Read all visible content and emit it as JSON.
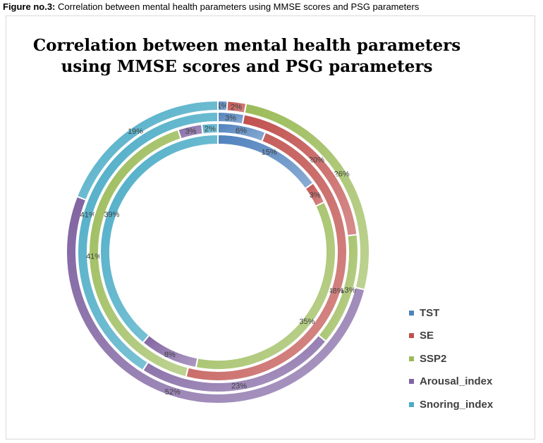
{
  "caption": {
    "prefix": "Figure no.3:",
    "text": " Correlation between mental health parameters using MMSE scores and PSG parameters"
  },
  "chart_data": {
    "type": "doughnut",
    "title": "Correlation between mental health parameters using MMSE scores and PSG parameters",
    "title_lines": [
      "Correlation between mental health parameters",
      "using MMSE scores and PSG parameters"
    ],
    "legend_position": "right",
    "categories": [
      "TST",
      "SE",
      "SSP2",
      "Arousal_index",
      "Snoring_index"
    ],
    "colors": [
      "#4f81bd",
      "#c0504d",
      "#9bbb59",
      "#8064a2",
      "#4bacc6"
    ],
    "rings_outer_to_inner": [
      {
        "values": [
          1,
          2,
          26,
          52,
          19
        ]
      },
      {
        "values": [
          3,
          20,
          13,
          23,
          41
        ]
      },
      {
        "values": [
          6,
          48,
          41,
          3,
          2
        ]
      },
      {
        "values": [
          15,
          3,
          35,
          8,
          39
        ]
      }
    ],
    "value_suffix": "%"
  }
}
